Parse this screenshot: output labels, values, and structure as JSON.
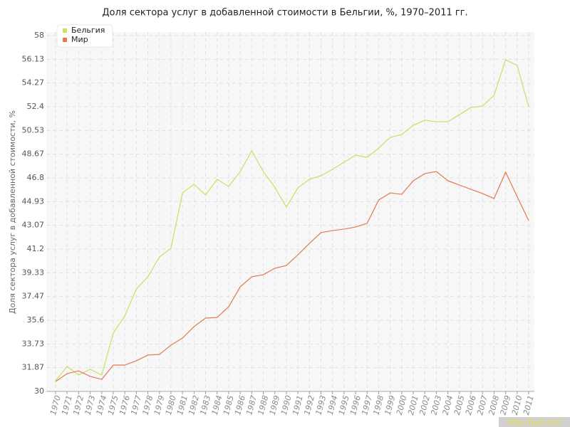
{
  "chart_data": {
    "type": "line",
    "title": "Доля сектора услуг в добавленной стоимости в Бельгии, %, 1970–2011 гг.",
    "y_label": "Доля сектора услуг в добавленной стоимости, %",
    "watermark": "http://be5.biz/",
    "categories": [
      "1970",
      "1971",
      "1972",
      "1973",
      "1974",
      "1975",
      "1976",
      "1977",
      "1978",
      "1979",
      "1980",
      "1981",
      "1982",
      "1983",
      "1984",
      "1985",
      "1986",
      "1987",
      "1988",
      "1989",
      "1990",
      "1991",
      "1992",
      "1993",
      "1994",
      "1995",
      "1996",
      "1997",
      "1998",
      "1999",
      "2000",
      "2001",
      "2002",
      "2003",
      "2004",
      "2005",
      "2006",
      "2007",
      "2008",
      "2009",
      "2010",
      "2011"
    ],
    "series": [
      {
        "name": "Бельгия",
        "color": "#c8e060",
        "values": [
          30.84,
          31.96,
          31.29,
          31.74,
          31.29,
          34.59,
          35.94,
          38.06,
          39.02,
          40.58,
          41.26,
          45.62,
          46.3,
          45.46,
          46.69,
          46.13,
          47.3,
          48.93,
          47.3,
          46.07,
          44.5,
          46.02,
          46.69,
          46.97,
          47.47,
          48.03,
          48.59,
          48.42,
          49.15,
          49.99,
          50.22,
          50.94,
          51.34,
          51.22,
          51.22,
          51.78,
          52.34,
          52.46,
          53.3,
          56.1,
          55.65,
          52.4
        ]
      },
      {
        "name": "Мир",
        "color": "#e07a50",
        "values": [
          30.78,
          31.4,
          31.62,
          31.18,
          30.95,
          32.07,
          32.07,
          32.41,
          32.86,
          32.91,
          33.64,
          34.2,
          35.1,
          35.77,
          35.82,
          36.66,
          38.23,
          39.02,
          39.18,
          39.69,
          39.91,
          40.75,
          41.65,
          42.49,
          42.66,
          42.77,
          42.94,
          43.22,
          45.06,
          45.62,
          45.51,
          46.58,
          47.14,
          47.3,
          46.58,
          46.24,
          45.9,
          45.57,
          45.18,
          47.25,
          45.34,
          43.44
        ]
      }
    ],
    "ylim": [
      30,
      58
    ],
    "yticks": [
      30,
      31.87,
      33.73,
      35.6,
      37.47,
      39.33,
      41.2,
      43.07,
      44.93,
      46.8,
      48.67,
      50.53,
      52.4,
      54.27,
      56.13,
      58
    ],
    "grid": true,
    "legend": "top-left"
  }
}
